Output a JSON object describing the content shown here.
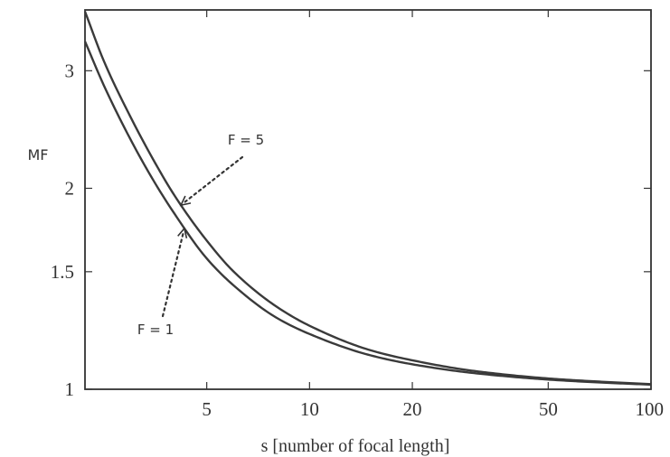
{
  "chart_data": {
    "type": "line",
    "xlabel": "s [number of focal length]",
    "ylabel": "MF",
    "x_scale": "log",
    "y_scale": "log",
    "xlim": [
      2.2,
      100
    ],
    "ylim": [
      1,
      3.7
    ],
    "x_ticks": [
      {
        "value": 5,
        "label": "5"
      },
      {
        "value": 10,
        "label": "10"
      },
      {
        "value": 20,
        "label": "20"
      },
      {
        "value": 50,
        "label": "50"
      },
      {
        "value": 100,
        "label": "100"
      }
    ],
    "y_ticks": [
      {
        "value": 1,
        "label": "1"
      },
      {
        "value": 1.5,
        "label": "1.5"
      },
      {
        "value": 2,
        "label": "2"
      },
      {
        "value": 3,
        "label": "3"
      }
    ],
    "grid": false,
    "series": [
      {
        "name": "F = 1",
        "F": 1,
        "x": [
          2.2,
          2.5,
          3,
          3.5,
          4,
          5,
          6,
          8,
          10,
          15,
          20,
          30,
          50,
          70,
          100
        ],
        "values": [
          3.32,
          2.85,
          2.36,
          2.05,
          1.84,
          1.57,
          1.43,
          1.28,
          1.21,
          1.125,
          1.09,
          1.058,
          1.034,
          1.024,
          1.016
        ]
      },
      {
        "name": "F = 5",
        "F": 5,
        "x": [
          2.2,
          2.5,
          3,
          3.5,
          4,
          5,
          6,
          8,
          10,
          15,
          20,
          30,
          50,
          70,
          100
        ],
        "values": [
          3.68,
          3.1,
          2.55,
          2.2,
          1.96,
          1.67,
          1.5,
          1.33,
          1.245,
          1.145,
          1.105,
          1.066,
          1.038,
          1.027,
          1.018
        ]
      }
    ],
    "annotations": [
      {
        "text": "F = 5",
        "series": "F = 5",
        "at_x": 4.2
      },
      {
        "text": "F = 1",
        "series": "F = 1",
        "at_x": 4.3
      }
    ]
  }
}
